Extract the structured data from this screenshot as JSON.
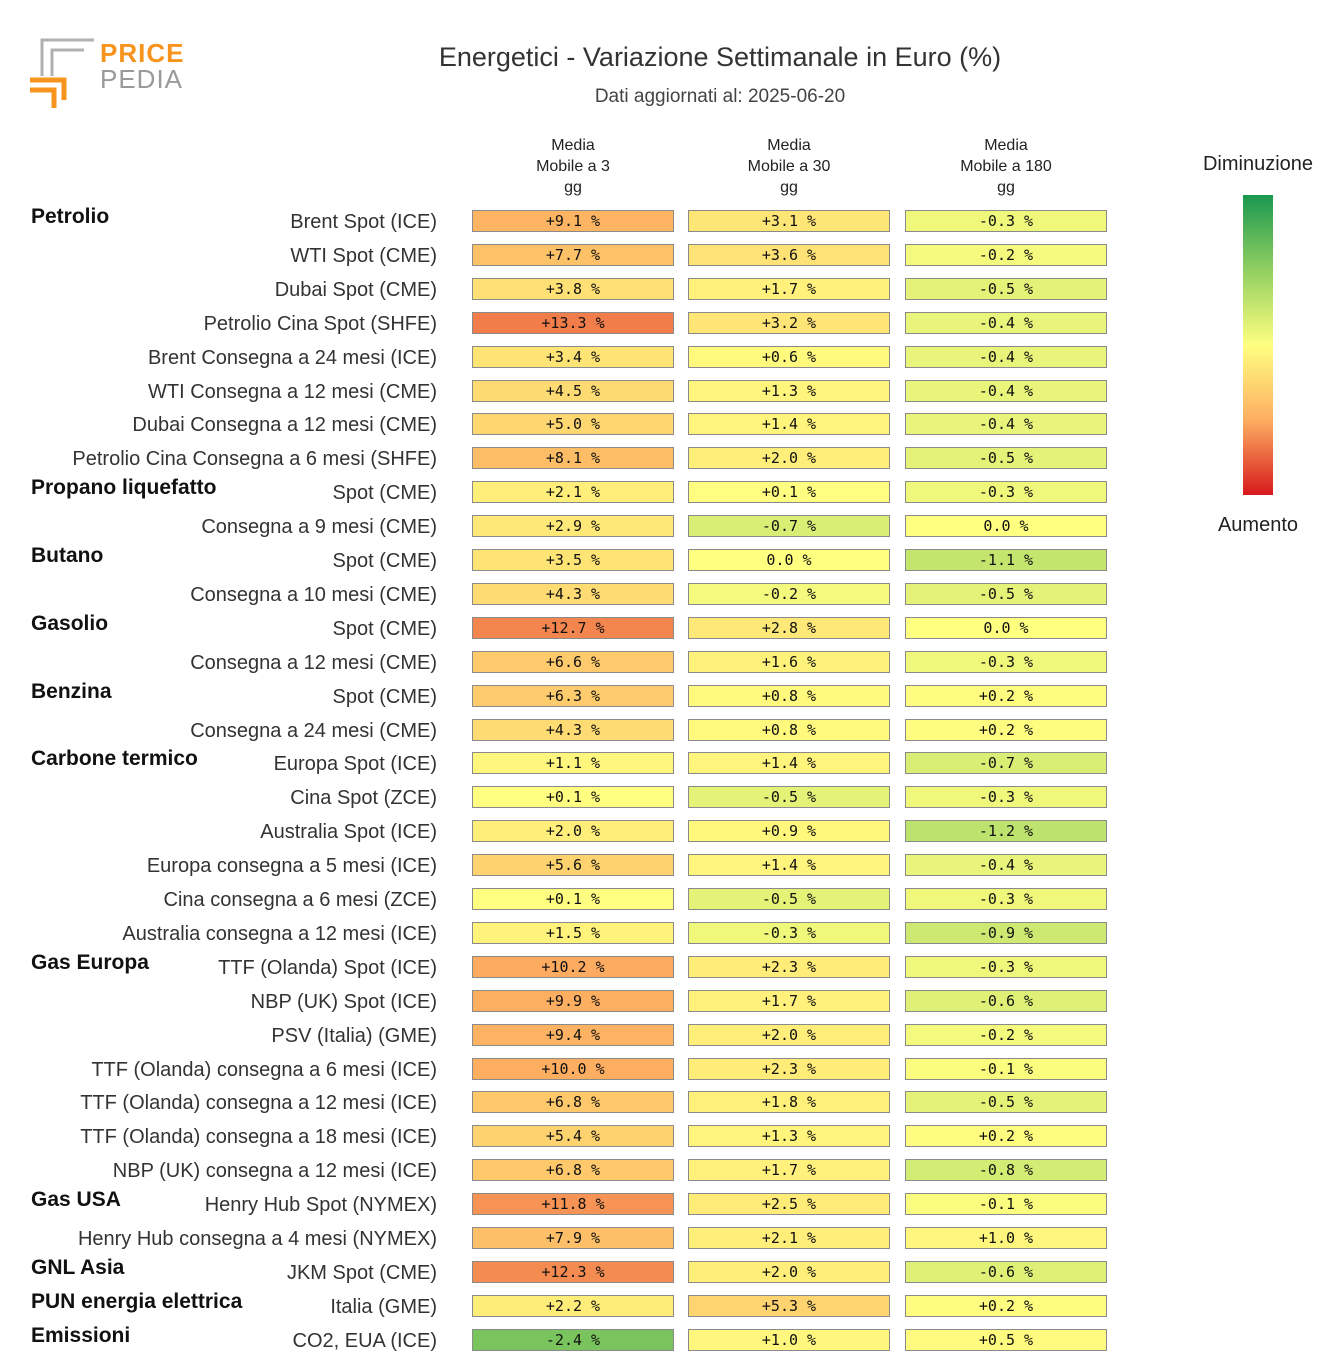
{
  "logo": {
    "line1": "PRICE",
    "line2": "PEDIA"
  },
  "chart_data": {
    "type": "heatmap",
    "title": "Energetici - Variazione Settimanale in Euro (%)",
    "subtitle": "Dati aggiornati al: 2025-06-20",
    "columns": [
      "Media\nMobile a 3\ngg",
      "Media\nMobile a 30\ngg",
      "Media\nMobile a 180\ngg"
    ],
    "legend": {
      "top": "Diminuzione",
      "bottom": "Aumento"
    },
    "colors": {
      "negative": "#1a9850",
      "mid": "#ffff80",
      "positive": "#d7191c"
    },
    "rows": [
      {
        "group": "Petrolio",
        "label": "Brent Spot (ICE)",
        "values": [
          9.1,
          3.1,
          -0.3
        ]
      },
      {
        "group": "",
        "label": "WTI Spot (CME)",
        "values": [
          7.7,
          3.6,
          -0.2
        ]
      },
      {
        "group": "",
        "label": "Dubai Spot (CME)",
        "values": [
          3.8,
          1.7,
          -0.5
        ]
      },
      {
        "group": "",
        "label": "Petrolio Cina Spot (SHFE)",
        "values": [
          13.3,
          3.2,
          -0.4
        ]
      },
      {
        "group": "",
        "label": "Brent Consegna a 24 mesi (ICE)",
        "values": [
          3.4,
          0.6,
          -0.4
        ]
      },
      {
        "group": "",
        "label": "WTI Consegna a 12 mesi (CME)",
        "values": [
          4.5,
          1.3,
          -0.4
        ]
      },
      {
        "group": "",
        "label": "Dubai Consegna a 12 mesi (CME)",
        "values": [
          5.0,
          1.4,
          -0.4
        ]
      },
      {
        "group": "",
        "label": "Petrolio Cina Consegna a 6 mesi (SHFE)",
        "values": [
          8.1,
          2.0,
          -0.5
        ]
      },
      {
        "group": "Propano liquefatto",
        "label": "Spot (CME)",
        "values": [
          2.1,
          0.1,
          -0.3
        ]
      },
      {
        "group": "",
        "label": "Consegna a 9 mesi (CME)",
        "values": [
          2.9,
          -0.7,
          0.0
        ]
      },
      {
        "group": "Butano",
        "label": "Spot (CME)",
        "values": [
          3.5,
          0.0,
          -1.1
        ]
      },
      {
        "group": "",
        "label": "Consegna a 10 mesi (CME)",
        "values": [
          4.3,
          -0.2,
          -0.5
        ]
      },
      {
        "group": "Gasolio",
        "label": "Spot (CME)",
        "values": [
          12.7,
          2.8,
          0.0
        ]
      },
      {
        "group": "",
        "label": "Consegna a 12 mesi (CME)",
        "values": [
          6.6,
          1.6,
          -0.3
        ]
      },
      {
        "group": "Benzina",
        "label": "Spot (CME)",
        "values": [
          6.3,
          0.8,
          0.2
        ]
      },
      {
        "group": "",
        "label": "Consegna a 24 mesi (CME)",
        "values": [
          4.3,
          0.8,
          0.2
        ]
      },
      {
        "group": "Carbone termico",
        "label": "Europa Spot (ICE)",
        "values": [
          1.1,
          1.4,
          -0.7
        ]
      },
      {
        "group": "",
        "label": "Cina Spot (ZCE)",
        "values": [
          0.1,
          -0.5,
          -0.3
        ]
      },
      {
        "group": "",
        "label": "Australia Spot (ICE)",
        "values": [
          2.0,
          0.9,
          -1.2
        ]
      },
      {
        "group": "",
        "label": "Europa consegna a 5 mesi (ICE)",
        "values": [
          5.6,
          1.4,
          -0.4
        ]
      },
      {
        "group": "",
        "label": "Cina consegna a 6 mesi (ZCE)",
        "values": [
          0.1,
          -0.5,
          -0.3
        ]
      },
      {
        "group": "",
        "label": "Australia consegna a 12 mesi (ICE)",
        "values": [
          1.5,
          -0.3,
          -0.9
        ]
      },
      {
        "group": "Gas Europa",
        "label": "TTF (Olanda) Spot (ICE)",
        "values": [
          10.2,
          2.3,
          -0.3
        ]
      },
      {
        "group": "",
        "label": "NBP (UK) Spot (ICE)",
        "values": [
          9.9,
          1.7,
          -0.6
        ]
      },
      {
        "group": "",
        "label": "PSV (Italia) (GME)",
        "values": [
          9.4,
          2.0,
          -0.2
        ]
      },
      {
        "group": "",
        "label": "TTF (Olanda) consegna a 6 mesi (ICE)",
        "values": [
          10.0,
          2.3,
          -0.1
        ]
      },
      {
        "group": "",
        "label": "TTF (Olanda) consegna a 12 mesi (ICE)",
        "values": [
          6.8,
          1.8,
          -0.5
        ]
      },
      {
        "group": "",
        "label": "TTF (Olanda) consegna a 18 mesi (ICE)",
        "values": [
          5.4,
          1.3,
          0.2
        ]
      },
      {
        "group": "",
        "label": "NBP (UK) consegna a 12 mesi (ICE)",
        "values": [
          6.8,
          1.7,
          -0.8
        ]
      },
      {
        "group": "Gas USA",
        "label": "Henry Hub Spot (NYMEX)",
        "values": [
          11.8,
          2.5,
          -0.1
        ]
      },
      {
        "group": "",
        "label": "Henry Hub consegna a 4 mesi (NYMEX)",
        "values": [
          7.9,
          2.1,
          1.0
        ]
      },
      {
        "group": "GNL Asia",
        "label": "JKM Spot (CME)",
        "values": [
          12.3,
          2.0,
          -0.6
        ]
      },
      {
        "group": "PUN energia elettrica",
        "label": "Italia (GME)",
        "values": [
          2.2,
          5.3,
          0.2
        ]
      },
      {
        "group": "Emissioni",
        "label": "CO2, EUA (ICE)",
        "values": [
          -2.4,
          1.0,
          0.5
        ]
      }
    ]
  }
}
